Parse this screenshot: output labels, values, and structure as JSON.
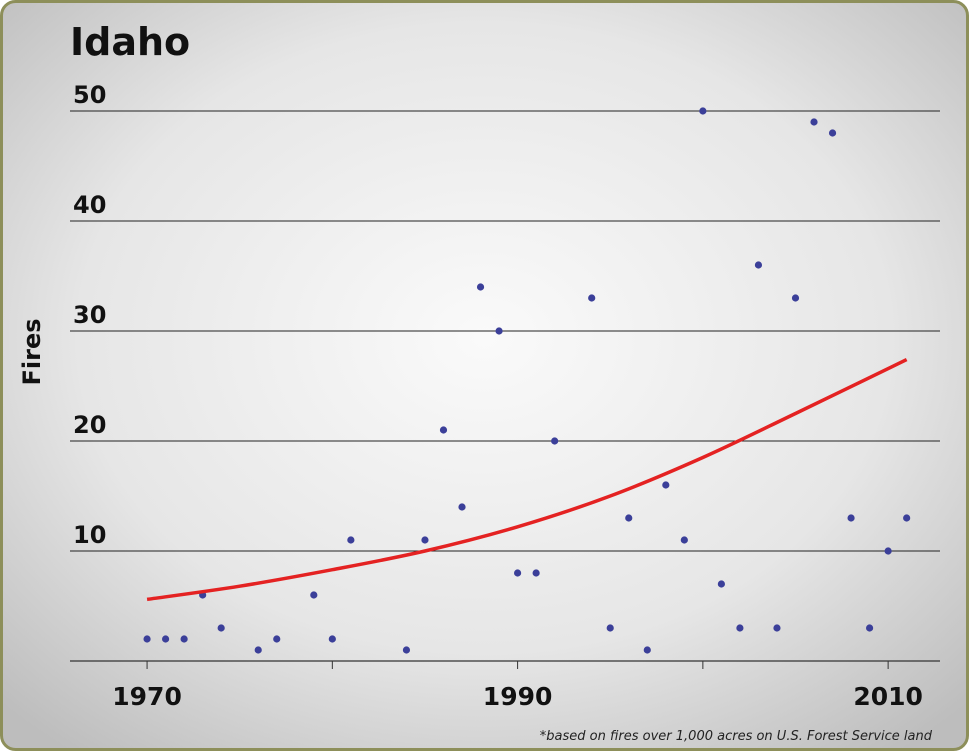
{
  "chart_data": {
    "type": "scatter",
    "title": "Idaho",
    "y_label": "Fires",
    "note": "*based on fires over 1,000 acres on U.S. Forest Service land",
    "series": [
      {
        "color": "#3b3f99",
        "x": [
          1970,
          1971,
          1972,
          1973,
          1974,
          1976,
          1977,
          1979,
          1980,
          1981,
          1984,
          1985,
          1986,
          1987,
          1988,
          1989,
          1990,
          1991,
          1992,
          1994,
          1995,
          1996,
          1997,
          1998,
          1999,
          2000,
          2001,
          2002,
          2003,
          2004,
          2005,
          2006,
          2007,
          2008,
          2009,
          2010,
          2011
        ],
        "values": [
          2,
          2,
          2,
          6,
          3,
          1,
          2,
          6,
          2,
          11,
          1,
          11,
          21,
          14,
          34,
          30,
          8,
          8,
          20,
          33,
          3,
          13,
          1,
          16,
          11,
          50,
          7,
          3,
          36,
          3,
          33,
          49,
          48,
          13,
          3,
          10,
          13
        ]
      },
      {
        "type": "line",
        "color": "#e42222",
        "x": [
          1970,
          1975,
          1980,
          1985,
          1990,
          1995,
          2000,
          2005,
          2011
        ],
        "values": [
          5.6,
          6.8,
          8.3,
          10,
          12.2,
          15,
          18.5,
          22.5,
          27.4
        ]
      }
    ],
    "xlim": [
      1965.84,
      2012.8
    ],
    "xticks": [
      1970,
      1990,
      2010
    ],
    "xminorticks": [
      1980,
      2000
    ],
    "ylim": [
      0,
      50
    ],
    "yticks": [
      10,
      20,
      30,
      40,
      50
    ],
    "grid": true
  }
}
